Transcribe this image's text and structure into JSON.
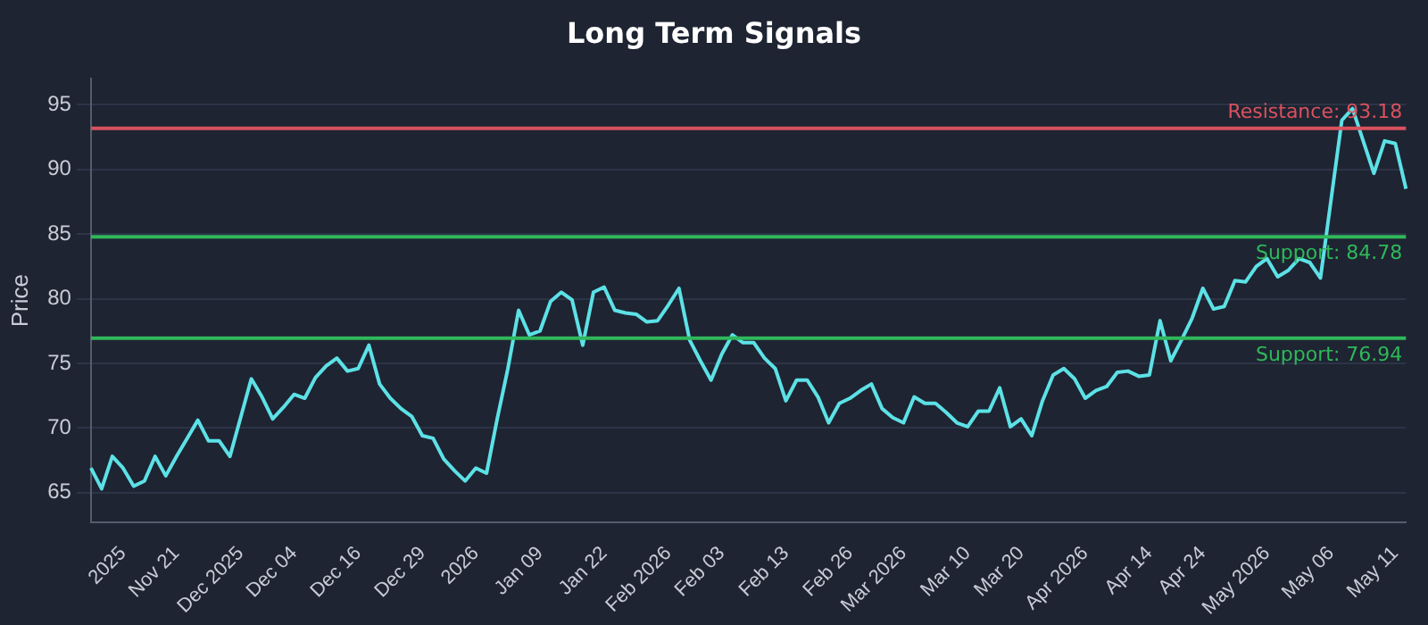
{
  "chart_data": {
    "type": "line",
    "title": "Long Term Signals",
    "ylabel": "Price",
    "categories": [
      null,
      null,
      null,
      "2025",
      null,
      null,
      null,
      null,
      "Nov 21",
      null,
      null,
      null,
      null,
      null,
      "Dec 2025",
      null,
      null,
      null,
      null,
      "Dec 04",
      null,
      null,
      null,
      null,
      null,
      "Dec 16",
      null,
      null,
      null,
      null,
      null,
      "Dec 29",
      null,
      null,
      null,
      null,
      "2026",
      null,
      null,
      null,
      null,
      null,
      "Jan 09",
      null,
      null,
      null,
      null,
      null,
      "Jan 22",
      null,
      null,
      null,
      null,
      null,
      "Feb 2026",
      null,
      null,
      null,
      null,
      "Feb 03",
      null,
      null,
      null,
      null,
      null,
      "Feb 13",
      null,
      null,
      null,
      null,
      null,
      "Feb 26",
      null,
      null,
      null,
      null,
      "Mar 2026",
      null,
      null,
      null,
      null,
      null,
      "Mar 10",
      null,
      null,
      null,
      null,
      "Mar 20",
      null,
      null,
      null,
      null,
      null,
      "Apr 2026",
      null,
      null,
      null,
      null,
      null,
      "Apr 14",
      null,
      null,
      null,
      null,
      "Apr 24",
      null,
      null,
      null,
      null,
      null,
      "May 2026",
      null,
      null,
      null,
      null,
      null,
      "May 06",
      null,
      null,
      null,
      null,
      null,
      "May 11",
      null
    ],
    "series": [
      {
        "color": "#5ce1e6",
        "values": [
          66.9,
          65.3,
          67.8,
          66.9,
          65.5,
          65.9,
          67.8,
          66.3,
          67.8,
          69.2,
          70.6,
          69.0,
          69.0,
          67.8,
          70.8,
          73.8,
          72.4,
          70.7,
          71.6,
          72.6,
          72.3,
          73.9,
          74.8,
          75.4,
          74.4,
          74.6,
          76.4,
          73.4,
          72.3,
          71.5,
          70.9,
          69.4,
          69.2,
          67.6,
          66.7,
          65.9,
          66.9,
          66.5,
          70.7,
          74.6,
          79.1,
          77.2,
          77.5,
          79.8,
          80.5,
          79.9,
          76.4,
          80.5,
          80.9,
          79.1,
          78.9,
          78.8,
          78.2,
          78.3,
          79.5,
          80.8,
          76.8,
          75.2,
          73.7,
          75.7,
          77.2,
          76.6,
          76.6,
          75.4,
          74.6,
          72.1,
          73.7,
          73.7,
          72.4,
          70.4,
          71.9,
          72.3,
          72.9,
          73.4,
          71.5,
          70.8,
          70.4,
          72.4,
          71.9,
          71.9,
          71.2,
          70.4,
          70.1,
          71.3,
          71.3,
          73.1,
          70.1,
          70.7,
          69.4,
          72.1,
          74.1,
          74.6,
          73.8,
          72.3,
          72.9,
          73.2,
          74.3,
          74.4,
          74.0,
          74.1,
          78.3,
          75.2,
          76.8,
          78.5,
          80.8,
          79.2,
          79.4,
          81.4,
          81.3,
          82.5,
          83.1,
          81.7,
          82.2,
          83.1,
          82.8,
          81.6,
          87.7,
          93.8,
          94.7,
          92.2,
          89.7,
          92.2,
          92.0,
          88.5
        ]
      }
    ],
    "ylim": [
      62.7,
      97
    ],
    "yticks": [
      65,
      70,
      75,
      80,
      85,
      90,
      95
    ],
    "ref_lines": [
      {
        "axis": "y",
        "value": 93.18,
        "label": "Resistance: 93.18",
        "color": "#d9515e"
      },
      {
        "axis": "y",
        "value": 84.78,
        "label": "Support: 84.78",
        "color": "#2fb85a"
      },
      {
        "axis": "y",
        "value": 76.94,
        "label": "Support: 76.94",
        "color": "#2fb85a"
      }
    ],
    "grid": "y",
    "legend": false,
    "marker": "none",
    "line_style": "solid"
  }
}
